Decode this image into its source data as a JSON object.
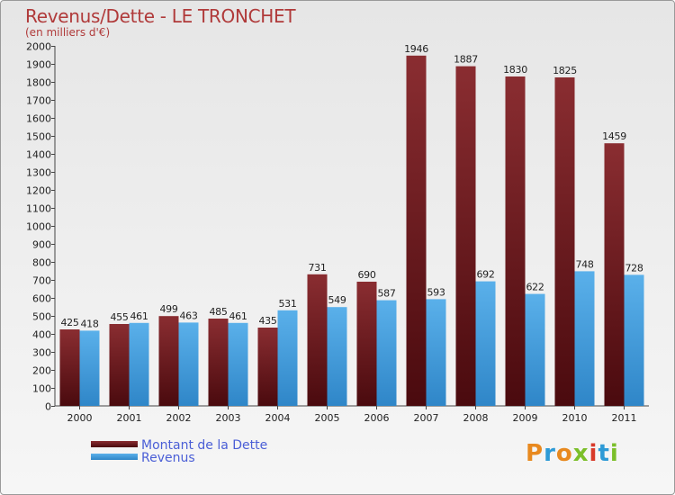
{
  "title": "Revenus/Dette - LE TRONCHET",
  "subtitle": "(en milliers d'€)",
  "legend": {
    "debt_label": "Montant de la Dette",
    "revenue_label": "Revenus"
  },
  "logo": {
    "text": "Proxiti"
  },
  "colors": {
    "debt_top": "#8a2d31",
    "debt_bottom": "#4a0a0e",
    "revenue_top": "#5ab0ea",
    "revenue_bottom": "#2f86c8",
    "title": "#b03a3a",
    "legend_text": "#4a5ed6"
  },
  "chart_data": {
    "type": "bar",
    "title": "Revenus/Dette - LE TRONCHET",
    "subtitle": "(en milliers d'€)",
    "categories": [
      "2000",
      "2001",
      "2002",
      "2003",
      "2004",
      "2005",
      "2006",
      "2007",
      "2008",
      "2009",
      "2010",
      "2011"
    ],
    "series": [
      {
        "name": "Montant de la Dette",
        "values": [
          425,
          455,
          499,
          485,
          435,
          731,
          690,
          1946,
          1887,
          1830,
          1825,
          1459
        ]
      },
      {
        "name": "Revenus",
        "values": [
          418,
          461,
          463,
          461,
          531,
          549,
          587,
          593,
          692,
          622,
          748,
          728
        ]
      }
    ],
    "ylim": [
      0,
      2000
    ],
    "ytick_step": 100,
    "grid": false,
    "legend_position": "bottom-left"
  }
}
